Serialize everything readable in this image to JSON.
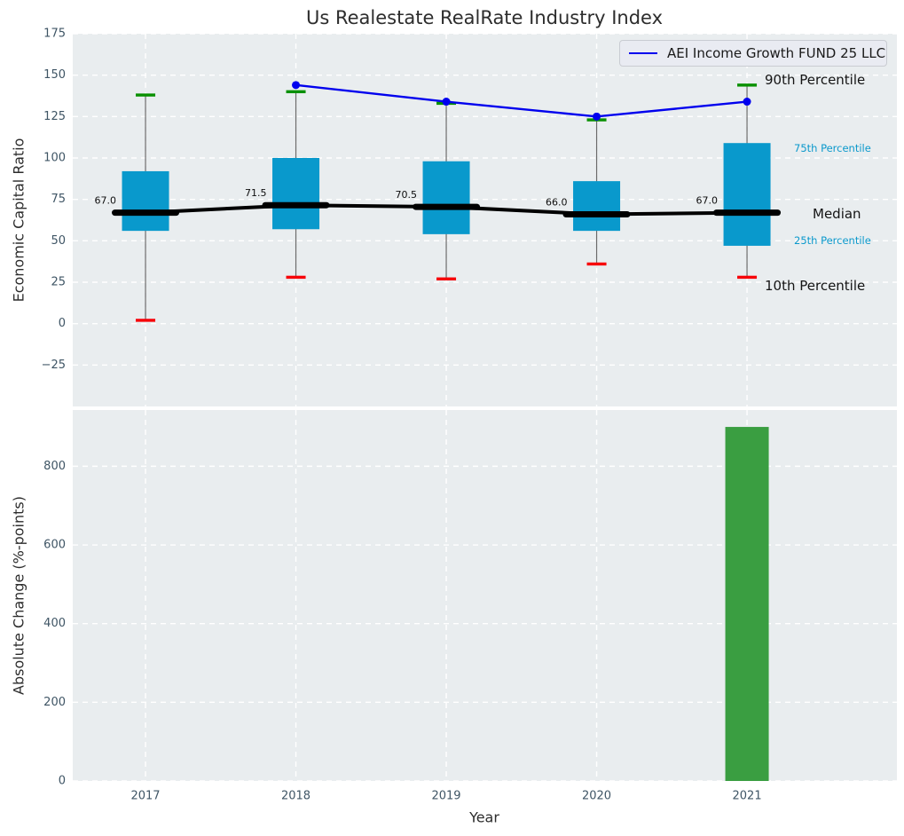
{
  "title": "Us Realestate RealRate Industry Index",
  "legend": {
    "label": "AEI Income Growth FUND 25 LLC",
    "line_color": "#0000ee"
  },
  "annotations": {
    "p90": "90th Percentile",
    "p75": "75th Percentile",
    "median": "Median",
    "p25": "25th Percentile",
    "p10": "10th Percentile"
  },
  "colors": {
    "plot_bg": "#e9edef",
    "grid": "#ffffff",
    "box_fill": "#0999cc",
    "median": "#000000",
    "whisker": "#6b6b6b",
    "cap_high": "#089000",
    "cap_low": "#f70008",
    "line": "#0000ee",
    "bar": "#3a9e41",
    "tick_text": "#3f5565",
    "percentile_text": "#0b99cc",
    "text": "#141414"
  },
  "chart_data": [
    {
      "type": "boxplot+line",
      "ylabel": "Economic Capital Ratio",
      "ylim": [
        -50,
        175
      ],
      "yticks": [
        175,
        150,
        125,
        100,
        75,
        50,
        25,
        0,
        -25
      ],
      "ytick_labels": [
        "175",
        "150",
        "125",
        "100",
        "75",
        "50",
        "25",
        "0",
        "−25"
      ],
      "categories": [
        "2017",
        "2018",
        "2019",
        "2020",
        "2021"
      ],
      "box": {
        "p90": [
          138,
          140,
          133,
          123,
          144
        ],
        "p75": [
          92,
          100,
          98,
          86,
          109
        ],
        "median": [
          67.0,
          71.5,
          70.5,
          66.0,
          67.0
        ],
        "p25": [
          56,
          57,
          54,
          56,
          47
        ],
        "p10": [
          2,
          28,
          27,
          36,
          28
        ]
      },
      "median_labels": [
        "67.0",
        "71.5",
        "70.5",
        "66.0",
        "67.0"
      ],
      "line_series": {
        "name": "AEI Income Growth FUND 25 LLC",
        "categories": [
          "2018",
          "2019",
          "2020",
          "2021"
        ],
        "values": [
          144,
          134,
          125,
          134
        ]
      },
      "grid": true,
      "legend_position": "upper right"
    },
    {
      "type": "bar",
      "ylabel": "Absolute Change (%-points)",
      "xlabel": "Year",
      "ylim": [
        0,
        943
      ],
      "yticks": [
        0,
        200,
        400,
        600,
        800
      ],
      "ytick_labels": [
        "0",
        "200",
        "400",
        "600",
        "800"
      ],
      "categories": [
        "2017",
        "2018",
        "2019",
        "2020",
        "2021"
      ],
      "values": [
        null,
        null,
        null,
        null,
        900
      ],
      "grid": true
    }
  ]
}
